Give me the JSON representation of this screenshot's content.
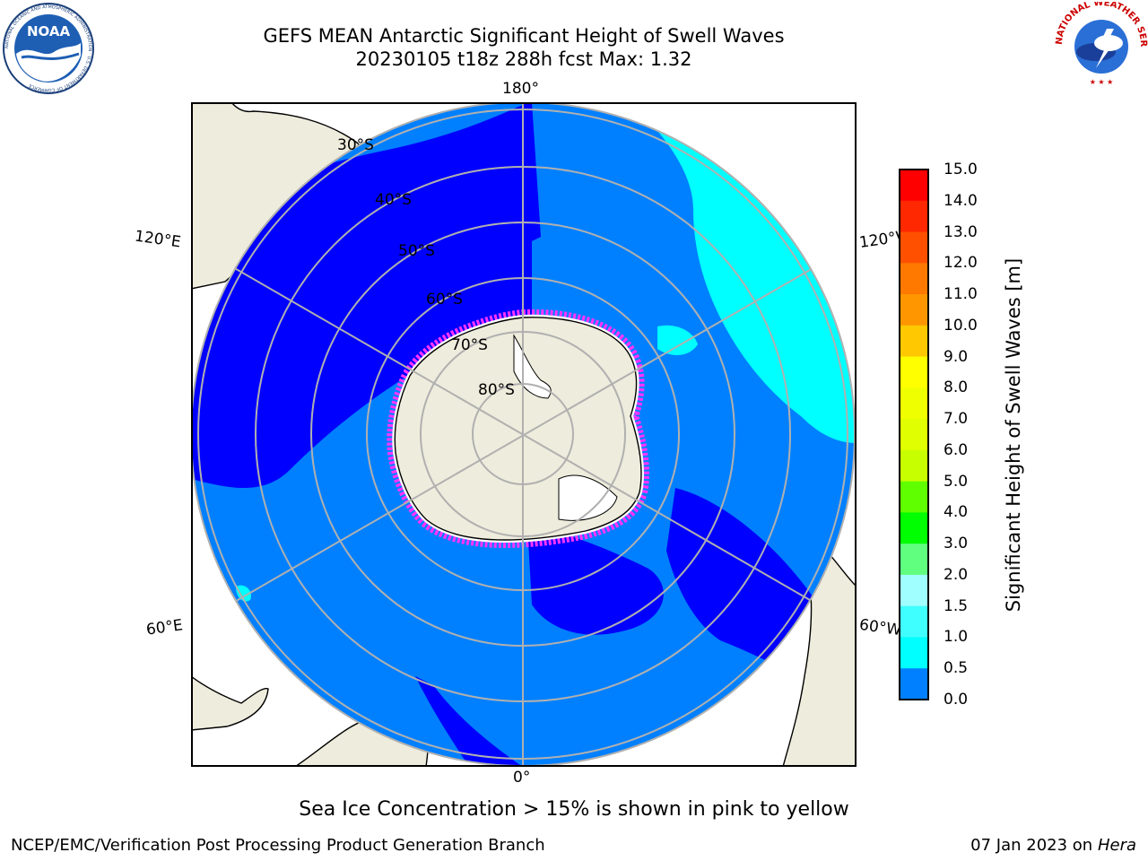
{
  "header": {
    "title": "GEFS MEAN Antarctic Significant Height of Swell Waves",
    "subtitle": "20230105 t18z 288h fcst   Max: 1.32"
  },
  "logos": {
    "noaa_text": "NOAA",
    "noaa_ring_text": "NATIONAL OCEANIC AND ATMOSPHERIC ADMINISTRATION · U.S. DEPARTMENT OF COMMERCE",
    "nws_ring_text": "NATIONAL WEATHER SERVICE"
  },
  "map": {
    "projection": "south-polar-stereographic",
    "longitude_labels": {
      "top": "180°",
      "upper_left": "120°E",
      "upper_right": "120°W",
      "lower_left": "60°E",
      "lower_right": "60°W",
      "bottom": "0°"
    },
    "latitude_labels": [
      "30°S",
      "40°S",
      "50°S",
      "60°S",
      "70°S",
      "80°S"
    ],
    "colors": {
      "land": "#eeecdc",
      "ocean_0_0p5": "#0000ff",
      "ocean_0p5_1": "#0080ff",
      "ocean_1_1p5": "#00ffff",
      "sea_ice_low": "#ff33ff",
      "sea_ice_high": "#ffff66",
      "grid": "#b0b0b0"
    }
  },
  "colorbar": {
    "label": "Significant Height of Swell Waves [m]",
    "ticks": [
      "15.0",
      "14.0",
      "13.0",
      "12.0",
      "11.0",
      "10.0",
      "9.0",
      "8.0",
      "7.0",
      "6.0",
      "5.0",
      "4.0",
      "3.0",
      "2.0",
      "1.5",
      "1.0",
      "0.5",
      "0.0"
    ],
    "colors": [
      "#ff0000",
      "#ff2800",
      "#ff5000",
      "#ff7800",
      "#ff9600",
      "#ffc800",
      "#ffff00",
      "#f0ff00",
      "#e0ff00",
      "#c8ff00",
      "#60ff00",
      "#00ff00",
      "#60ff80",
      "#a0ffff",
      "#40ffff",
      "#00ffff",
      "#0080ff",
      "#0000ff"
    ]
  },
  "footer": {
    "note": "Sea Ice Concentration > 15% is shown in pink to yellow",
    "credit": "NCEP/EMC/Verification Post Processing Product Generation Branch",
    "date": "07 Jan 2023 on",
    "host": "Hera"
  }
}
